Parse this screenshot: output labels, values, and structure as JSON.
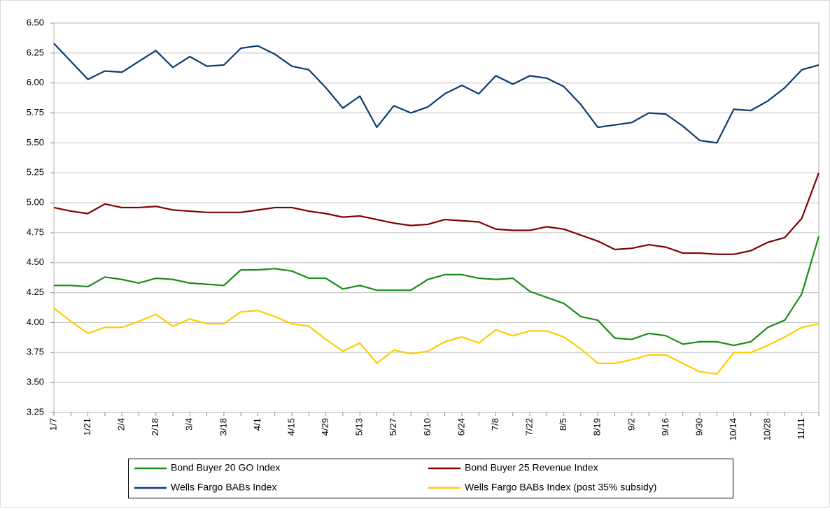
{
  "chart_data": {
    "type": "line",
    "categories": [
      "1/7",
      null,
      "1/21",
      null,
      "2/4",
      null,
      "2/18",
      null,
      "3/4",
      null,
      "3/18",
      null,
      "4/1",
      null,
      "4/15",
      null,
      "4/29",
      null,
      "5/13",
      null,
      "5/27",
      null,
      "6/10",
      null,
      "6/24",
      null,
      "7/8",
      null,
      "7/22",
      null,
      "8/5",
      null,
      "8/19",
      null,
      "9/2",
      null,
      "9/16",
      null,
      "9/30",
      null,
      "10/14",
      null,
      "10/28",
      null,
      "11/11",
      null
    ],
    "series": [
      {
        "name": "Bond Buyer 20 GO Index",
        "color": "#1a8c1a",
        "values": [
          4.31,
          4.31,
          4.3,
          4.38,
          4.36,
          4.33,
          4.37,
          4.36,
          4.33,
          4.32,
          4.31,
          4.44,
          4.44,
          4.45,
          4.43,
          4.37,
          4.37,
          4.28,
          4.31,
          4.27,
          4.27,
          4.27,
          4.36,
          4.4,
          4.4,
          4.37,
          4.36,
          4.37,
          4.26,
          4.21,
          4.16,
          4.05,
          4.02,
          3.87,
          3.86,
          3.91,
          3.89,
          3.82,
          3.84,
          3.84,
          3.81,
          3.84,
          3.96,
          4.02,
          4.24,
          4.72
        ]
      },
      {
        "name": "Bond Buyer 25 Revenue Index",
        "color": "#800000",
        "values": [
          4.96,
          4.93,
          4.91,
          4.99,
          4.96,
          4.96,
          4.97,
          4.94,
          4.93,
          4.92,
          4.92,
          4.92,
          4.94,
          4.96,
          4.96,
          4.93,
          4.91,
          4.88,
          4.89,
          4.86,
          4.83,
          4.81,
          4.82,
          4.86,
          4.85,
          4.84,
          4.78,
          4.77,
          4.77,
          4.8,
          4.78,
          4.73,
          4.68,
          4.61,
          4.62,
          4.65,
          4.63,
          4.58,
          4.58,
          4.57,
          4.57,
          4.6,
          4.67,
          4.71,
          4.87,
          5.25
        ]
      },
      {
        "name": "Wells Fargo BABs Index",
        "color": "#0d3b6e",
        "values": [
          6.33,
          6.18,
          6.03,
          6.1,
          6.09,
          6.18,
          6.27,
          6.13,
          6.22,
          6.14,
          6.15,
          6.29,
          6.31,
          6.24,
          6.14,
          6.11,
          5.96,
          5.79,
          5.89,
          5.63,
          5.81,
          5.75,
          5.8,
          5.91,
          5.98,
          5.91,
          6.06,
          5.99,
          6.06,
          6.04,
          5.97,
          5.82,
          5.63,
          5.65,
          5.67,
          5.75,
          5.74,
          5.64,
          5.52,
          5.5,
          5.78,
          5.77,
          5.85,
          5.96,
          6.11,
          6.15
        ]
      },
      {
        "name": "Wells Fargo BABs Index (post 35% subsidy)",
        "color": "#ffcc00",
        "values": [
          4.12,
          4.01,
          3.91,
          3.96,
          3.96,
          4.01,
          4.07,
          3.97,
          4.03,
          3.99,
          3.99,
          4.09,
          4.1,
          4.05,
          3.99,
          3.97,
          3.86,
          3.76,
          3.83,
          3.66,
          3.77,
          3.74,
          3.76,
          3.84,
          3.88,
          3.83,
          3.94,
          3.89,
          3.93,
          3.93,
          3.88,
          3.78,
          3.66,
          3.66,
          3.69,
          3.73,
          3.73,
          3.66,
          3.59,
          3.57,
          3.75,
          3.75,
          3.81,
          3.88,
          3.96,
          3.99
        ]
      }
    ],
    "ylim": [
      3.25,
      6.5
    ],
    "yticks": [
      {
        "value": 6.5,
        "label": "6.50"
      },
      6.25,
      {
        "value": 6,
        "label": "6.00"
      },
      5.75,
      {
        "value": 5.5,
        "label": "5.50"
      },
      5.25,
      {
        "value": 5,
        "label": "5.00"
      },
      4.75,
      {
        "value": 4.5,
        "label": "4.50"
      },
      4.25,
      {
        "value": 4,
        "label": "4.00"
      },
      3.75,
      {
        "value": 3.5,
        "label": "3.50"
      },
      3.25
    ],
    "grid": true,
    "legend": "bottom"
  }
}
